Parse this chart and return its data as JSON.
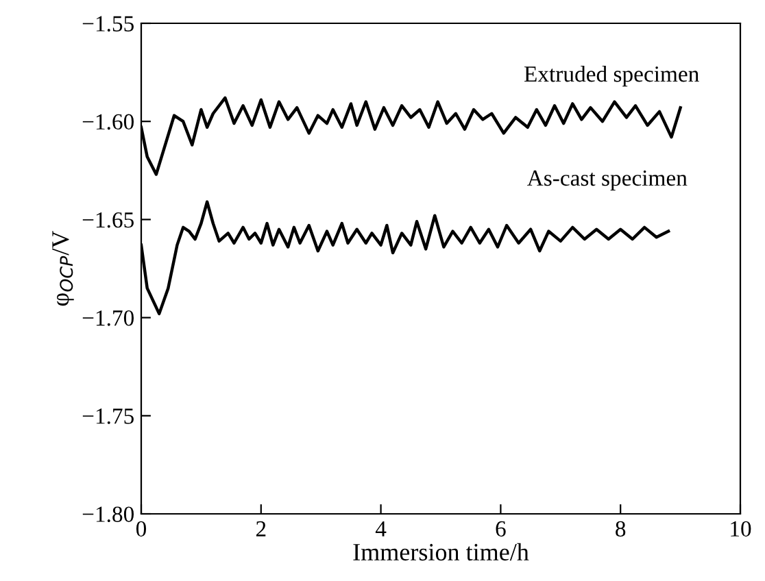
{
  "chart_data": {
    "type": "line",
    "xlabel": "Immersion time/h",
    "ylabel": "φ$_{OCP}$/V",
    "xlim": [
      0,
      10
    ],
    "xticks": [
      0,
      2,
      4,
      6,
      8,
      10
    ],
    "ylim": [
      -1.8,
      -1.55
    ],
    "yticks": [
      {
        "value": -1.8,
        "label": "−1.80"
      },
      {
        "value": -1.75,
        "label": "−1.75"
      },
      {
        "value": -1.7,
        "label": "−1.70"
      },
      {
        "value": -1.65,
        "label": "−1.65"
      },
      {
        "value": -1.6,
        "label": "−1.60"
      },
      {
        "value": -1.55,
        "label": "−1.55"
      }
    ],
    "grid": false,
    "legend": false,
    "marker": "none",
    "line_style": "solid",
    "series": [
      {
        "name": "Extruded specimen",
        "color": "#000000",
        "x": [
          0,
          0.1,
          0.25,
          0.4,
          0.55,
          0.7,
          0.85,
          1.0,
          1.1,
          1.2,
          1.4,
          1.55,
          1.7,
          1.85,
          2.0,
          2.15,
          2.3,
          2.45,
          2.6,
          2.8,
          2.95,
          3.1,
          3.2,
          3.35,
          3.5,
          3.6,
          3.75,
          3.9,
          4.05,
          4.2,
          4.35,
          4.5,
          4.65,
          4.8,
          4.95,
          5.1,
          5.25,
          5.4,
          5.55,
          5.7,
          5.85,
          6.05,
          6.25,
          6.45,
          6.6,
          6.75,
          6.9,
          7.05,
          7.2,
          7.35,
          7.5,
          7.7,
          7.9,
          8.1,
          8.25,
          8.45,
          8.65,
          8.85,
          9.0
        ],
        "values": [
          -1.603,
          -1.618,
          -1.627,
          -1.612,
          -1.597,
          -1.6,
          -1.612,
          -1.594,
          -1.603,
          -1.596,
          -1.588,
          -1.601,
          -1.592,
          -1.602,
          -1.589,
          -1.603,
          -1.59,
          -1.599,
          -1.593,
          -1.606,
          -1.597,
          -1.601,
          -1.594,
          -1.603,
          -1.591,
          -1.602,
          -1.59,
          -1.604,
          -1.593,
          -1.602,
          -1.592,
          -1.598,
          -1.594,
          -1.603,
          -1.59,
          -1.601,
          -1.596,
          -1.604,
          -1.594,
          -1.599,
          -1.596,
          -1.606,
          -1.598,
          -1.603,
          -1.594,
          -1.602,
          -1.592,
          -1.601,
          -1.591,
          -1.599,
          -1.593,
          -1.6,
          -1.59,
          -1.598,
          -1.592,
          -1.602,
          -1.595,
          -1.608,
          -1.593
        ]
      },
      {
        "name": "As-cast specimen",
        "color": "#000000",
        "x": [
          0,
          0.1,
          0.3,
          0.45,
          0.6,
          0.7,
          0.8,
          0.9,
          1.0,
          1.1,
          1.2,
          1.3,
          1.45,
          1.55,
          1.7,
          1.8,
          1.9,
          2.0,
          2.1,
          2.2,
          2.3,
          2.45,
          2.55,
          2.65,
          2.8,
          2.95,
          3.1,
          3.2,
          3.35,
          3.45,
          3.6,
          3.75,
          3.85,
          4.0,
          4.1,
          4.2,
          4.35,
          4.5,
          4.6,
          4.75,
          4.9,
          5.05,
          5.2,
          5.35,
          5.5,
          5.65,
          5.8,
          5.95,
          6.1,
          6.3,
          6.5,
          6.65,
          6.8,
          7.0,
          7.2,
          7.4,
          7.6,
          7.8,
          8.0,
          8.2,
          8.4,
          8.6,
          8.8
        ],
        "values": [
          -1.663,
          -1.685,
          -1.698,
          -1.685,
          -1.663,
          -1.654,
          -1.656,
          -1.66,
          -1.652,
          -1.641,
          -1.652,
          -1.661,
          -1.657,
          -1.662,
          -1.654,
          -1.66,
          -1.657,
          -1.662,
          -1.652,
          -1.663,
          -1.655,
          -1.664,
          -1.654,
          -1.662,
          -1.653,
          -1.666,
          -1.656,
          -1.663,
          -1.652,
          -1.662,
          -1.655,
          -1.662,
          -1.657,
          -1.663,
          -1.653,
          -1.667,
          -1.657,
          -1.663,
          -1.651,
          -1.665,
          -1.648,
          -1.664,
          -1.656,
          -1.662,
          -1.654,
          -1.662,
          -1.655,
          -1.664,
          -1.653,
          -1.662,
          -1.655,
          -1.666,
          -1.656,
          -1.661,
          -1.654,
          -1.66,
          -1.655,
          -1.66,
          -1.655,
          -1.66,
          -1.654,
          -1.659,
          -1.656
        ]
      }
    ]
  }
}
